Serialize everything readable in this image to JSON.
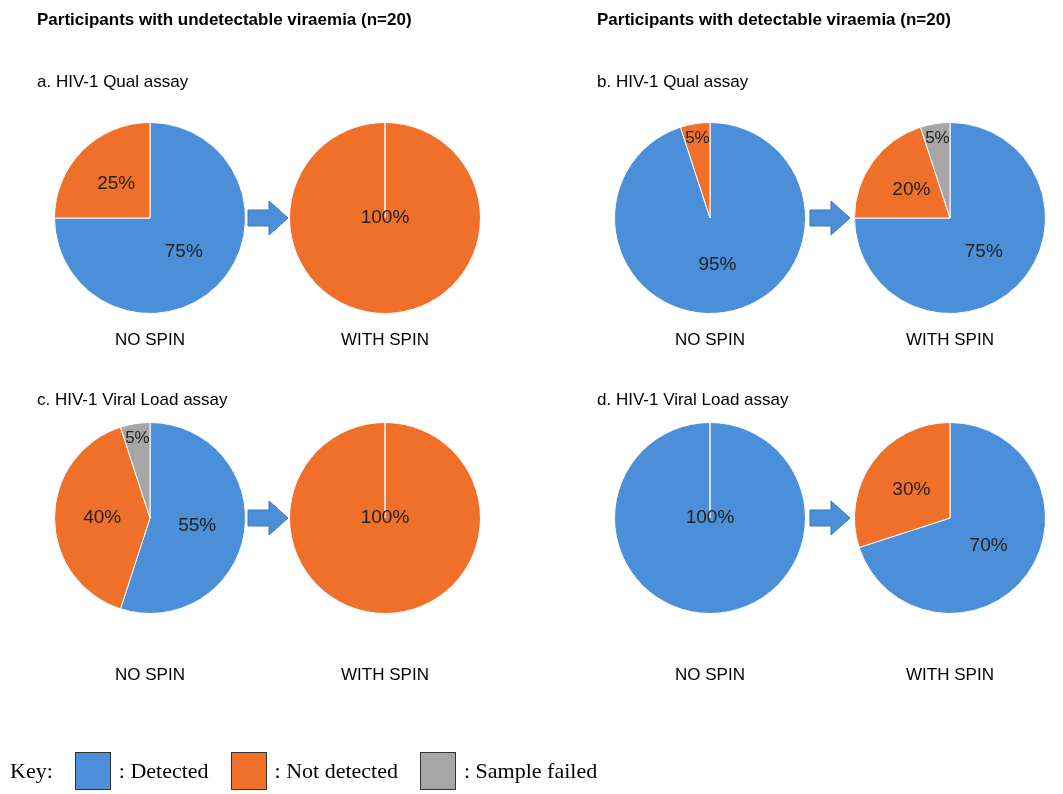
{
  "chart_data": [
    {
      "type": "pie",
      "title": "Participants with undetectable viraemia (n=20)",
      "subtitle": "a. HIV-1 Qual assay",
      "xlabel": "NO SPIN",
      "categories": [
        null,
        null
      ],
      "values": [
        75,
        25
      ],
      "colors": [
        "#4a8fd8",
        "#f0702a"
      ],
      "value_labels": [
        "75%",
        "25%"
      ]
    },
    {
      "type": "pie",
      "xlabel": "WITH  SPIN",
      "categories": [
        null
      ],
      "values": [
        100
      ],
      "colors": [
        "#f0702a"
      ],
      "value_labels": [
        "100%"
      ]
    },
    {
      "type": "pie",
      "title": "Participants with detectable viraemia (n=20)",
      "subtitle": "b. HIV-1 Qual assay",
      "xlabel": "NO SPIN",
      "categories": [
        null,
        null
      ],
      "values": [
        95,
        5
      ],
      "colors": [
        "#4a8fd8",
        "#f0702a"
      ],
      "value_labels": [
        "95%",
        "5%"
      ]
    },
    {
      "type": "pie",
      "xlabel": "WITH  SPIN",
      "categories": [
        null,
        null,
        null
      ],
      "values": [
        75,
        20,
        5
      ],
      "colors": [
        "#4a8fd8",
        "#f0702a",
        "#a6a6a6"
      ],
      "value_labels": [
        "75%",
        "20%",
        "5%"
      ]
    },
    {
      "type": "pie",
      "subtitle": "c. HIV-1 Viral Load assay",
      "xlabel": "NO SPIN",
      "categories": [
        ": Detected",
        ": Not detected",
        ": Sample failed"
      ],
      "values": [
        55,
        40,
        5
      ],
      "colors": [
        "#4a8fd8",
        "#f0702a",
        "#a6a6a6"
      ],
      "value_labels": [
        "55%",
        "40%",
        "5%"
      ],
      "legend": "bottom",
      "legend_title": "Key:"
    },
    {
      "type": "pie",
      "xlabel": "WITH  SPIN",
      "categories": [
        null
      ],
      "values": [
        100
      ],
      "colors": [
        "#f0702a"
      ],
      "value_labels": [
        "100%"
      ]
    },
    {
      "type": "pie",
      "subtitle": "d. HIV-1 Viral Load assay",
      "xlabel": "NO SPIN",
      "categories": [
        null
      ],
      "values": [
        100
      ],
      "colors": [
        "#4a8fd8"
      ],
      "value_labels": [
        "100%"
      ]
    },
    {
      "type": "pie",
      "xlabel": "WITH  SPIN",
      "categories": [
        null,
        null
      ],
      "values": [
        70,
        30
      ],
      "colors": [
        "#4a8fd8",
        "#f0702a"
      ],
      "value_labels": [
        "70%",
        "30%"
      ]
    }
  ]
}
